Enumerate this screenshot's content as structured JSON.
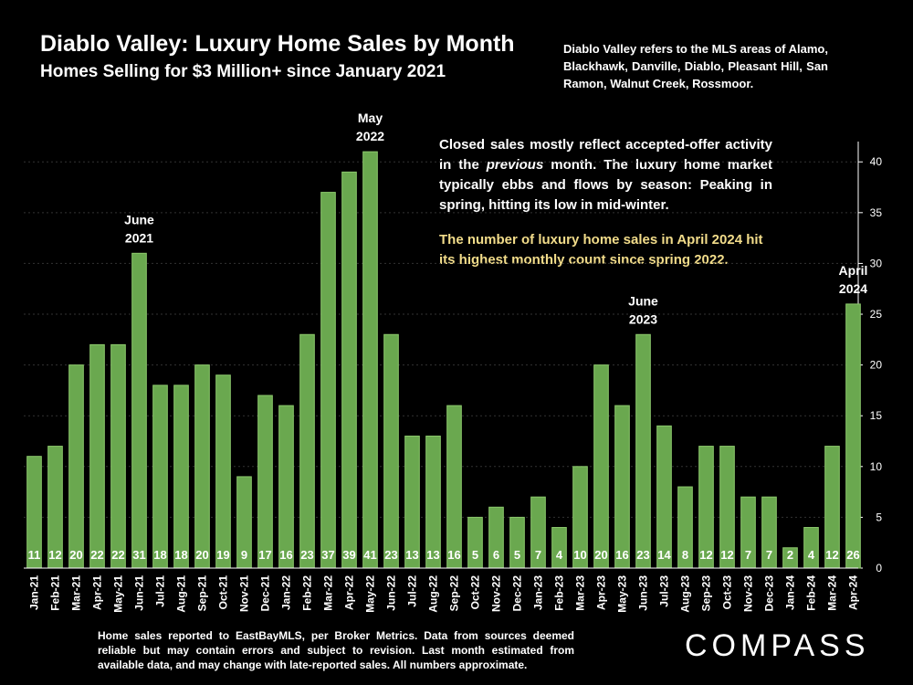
{
  "header": {
    "title": "Diablo Valley:  Luxury Home Sales by Month",
    "subtitle": "Homes Selling for $3 Million+ since January 2021"
  },
  "areas_note": "Diablo Valley refers to the MLS areas of Alamo, Blackhawk, Danville, Diablo, Pleasant Hill, San Ramon, Walnut Creek, Rossmoor.",
  "commentary": {
    "part1": "Closed sales mostly reflect accepted-offer activity in the",
    "part1_italic": "previous",
    "part1_end": "month. The luxury home market typically ebbs and flows by season: Peaking in spring, hitting its low in mid-winter.",
    "highlight": "The number of luxury home sales in April 2024 hit its highest monthly count since spring 2022."
  },
  "footnote": "Home sales reported to EastBayMLS, per Broker Metrics. Data from sources deemed reliable but may contain errors and subject to revision.  Last month estimated from available data, and may change with late-reported sales. All numbers approximate.",
  "logo": {
    "text": "COMPASS"
  },
  "colors": {
    "bar": "#6aa84f",
    "bar_edge": "#8cc86c",
    "background": "#000000",
    "highlight": "#f2dc8a"
  },
  "chart_data": {
    "type": "bar",
    "title": "Diablo Valley:  Luxury Home Sales by Month",
    "categories": [
      "Jan-21",
      "Feb-21",
      "Mar-21",
      "Apr-21",
      "May-21",
      "Jun-21",
      "Jul-21",
      "Aug-21",
      "Sep-21",
      "Oct-21",
      "Nov-21",
      "Dec-21",
      "Jan-22",
      "Feb-22",
      "Mar-22",
      "Apr-22",
      "May-22",
      "Jun-22",
      "Jul-22",
      "Aug-22",
      "Sep-22",
      "Oct-22",
      "Nov-22",
      "Dec-22",
      "Jan-23",
      "Feb-23",
      "Mar-23",
      "Apr-23",
      "May-23",
      "Jun-23",
      "Jul-23",
      "Aug-23",
      "Sep-23",
      "Oct-23",
      "Nov-23",
      "Dec-23",
      "Jan-24",
      "Feb-24",
      "Mar-24",
      "Apr-24"
    ],
    "values": [
      11,
      12,
      20,
      22,
      22,
      31,
      18,
      18,
      20,
      19,
      9,
      17,
      16,
      23,
      37,
      39,
      41,
      23,
      13,
      13,
      16,
      5,
      6,
      5,
      7,
      4,
      10,
      20,
      16,
      23,
      14,
      8,
      12,
      12,
      7,
      7,
      2,
      4,
      12,
      26
    ],
    "ylim": [
      0,
      42
    ],
    "yticks": [
      0,
      5,
      10,
      15,
      20,
      25,
      30,
      35,
      40
    ],
    "y_axis_side": "right",
    "xlabel": "",
    "ylabel": "",
    "annotations": [
      {
        "index": 5,
        "lines": [
          "June",
          "2021"
        ]
      },
      {
        "index": 16,
        "lines": [
          "May",
          "2022"
        ]
      },
      {
        "index": 29,
        "lines": [
          "June",
          "2023"
        ]
      },
      {
        "index": 39,
        "lines": [
          "April",
          "2024"
        ]
      }
    ]
  }
}
